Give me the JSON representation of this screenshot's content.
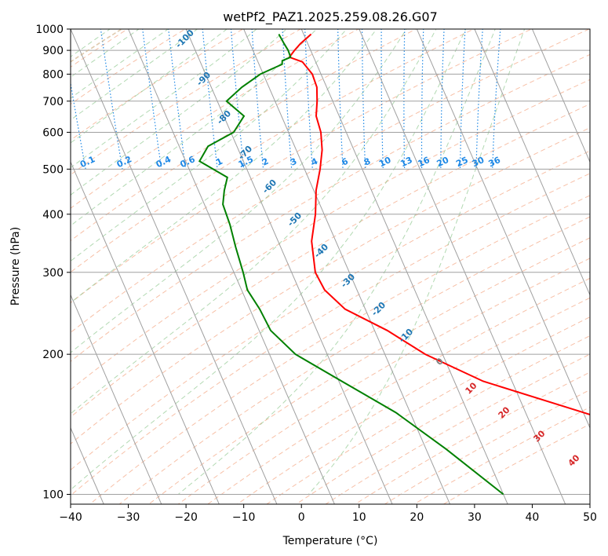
{
  "chart_data": {
    "type": "line",
    "title": "wetPf2_PAZ1.2025.259.08.26.G07",
    "xlabel": "Temperature (°C)",
    "ylabel": "Pressure (hPa)",
    "xlim": [
      -40,
      50
    ],
    "ylim": [
      1030,
      100
    ],
    "y_scale": "log",
    "grid": true,
    "x_ticks": [
      -40,
      -30,
      -20,
      -10,
      0,
      10,
      20,
      30,
      40,
      50
    ],
    "y_ticks": [
      1000,
      900,
      800,
      700,
      600,
      500,
      400,
      300,
      200,
      100
    ],
    "series": [
      {
        "role": "temperature",
        "color": "#ff0000",
        "points": [
          [
            1.3,
            975
          ],
          [
            -1.3,
            930
          ],
          [
            -2.8,
            900
          ],
          [
            -4.2,
            870
          ],
          [
            -2.3,
            850
          ],
          [
            -1.5,
            800
          ],
          [
            -1.7,
            750
          ],
          [
            -2.7,
            700
          ],
          [
            -4.0,
            650
          ],
          [
            -4.4,
            600
          ],
          [
            -5.5,
            550
          ],
          [
            -7.3,
            500
          ],
          [
            -9.6,
            450
          ],
          [
            -11.5,
            400
          ],
          [
            -14.2,
            350
          ],
          [
            -15.9,
            300
          ],
          [
            -15.6,
            275
          ],
          [
            -13.5,
            250
          ],
          [
            -7.8,
            225
          ],
          [
            -3.0,
            200
          ],
          [
            5.0,
            175
          ],
          [
            20.0,
            150
          ],
          [
            30.0,
            135
          ],
          [
            36.5,
            120
          ],
          [
            41.0,
            110
          ],
          [
            45.0,
            100
          ]
        ]
      },
      {
        "role": "dewpoint",
        "color": "#008000",
        "points": [
          [
            -4.3,
            975
          ],
          [
            -4.1,
            930
          ],
          [
            -3.9,
            900
          ],
          [
            -4.0,
            870
          ],
          [
            -5.7,
            855
          ],
          [
            -6.0,
            840
          ],
          [
            -10.5,
            800
          ],
          [
            -14.7,
            750
          ],
          [
            -18.4,
            700
          ],
          [
            -16.5,
            650
          ],
          [
            -19.5,
            600
          ],
          [
            -25.0,
            560
          ],
          [
            -27.6,
            520
          ],
          [
            -24.0,
            480
          ],
          [
            -25.5,
            450
          ],
          [
            -26.8,
            420
          ],
          [
            -27.1,
            380
          ],
          [
            -27.8,
            340
          ],
          [
            -28.4,
            300
          ],
          [
            -29.0,
            275
          ],
          [
            -28.3,
            250
          ],
          [
            -28.0,
            225
          ],
          [
            -25.5,
            200
          ],
          [
            -19.5,
            175
          ],
          [
            -12.5,
            150
          ],
          [
            -6.5,
            125
          ],
          [
            0.0,
            100
          ]
        ]
      }
    ],
    "dry_adiabat_labels": [
      "-100",
      "-90",
      "-80",
      "-70",
      "-60",
      "-50",
      "-40",
      "-30",
      "-20",
      "-10",
      "0",
      "10",
      "20",
      "30",
      "40"
    ],
    "mixing_ratio_labels": [
      "0.1",
      "0.2",
      "0.4",
      "0.6",
      "1",
      "1.5",
      "2",
      "3",
      "4",
      "6",
      "8",
      "10",
      "13",
      "16",
      "20",
      "25",
      "30",
      "36"
    ],
    "colors": {
      "temperature": "#ff0000",
      "dewpoint": "#008000",
      "isotherm": "#a0a0a0",
      "dry_adiabat": "#f4a582",
      "moist_adiabat": "#7fbf7f",
      "mixing_ratio": "#1e88e5",
      "dry_label_cold": "#1f77b4",
      "dry_label_warm": "#d62728",
      "lcl_line": "#d2b48c"
    }
  }
}
